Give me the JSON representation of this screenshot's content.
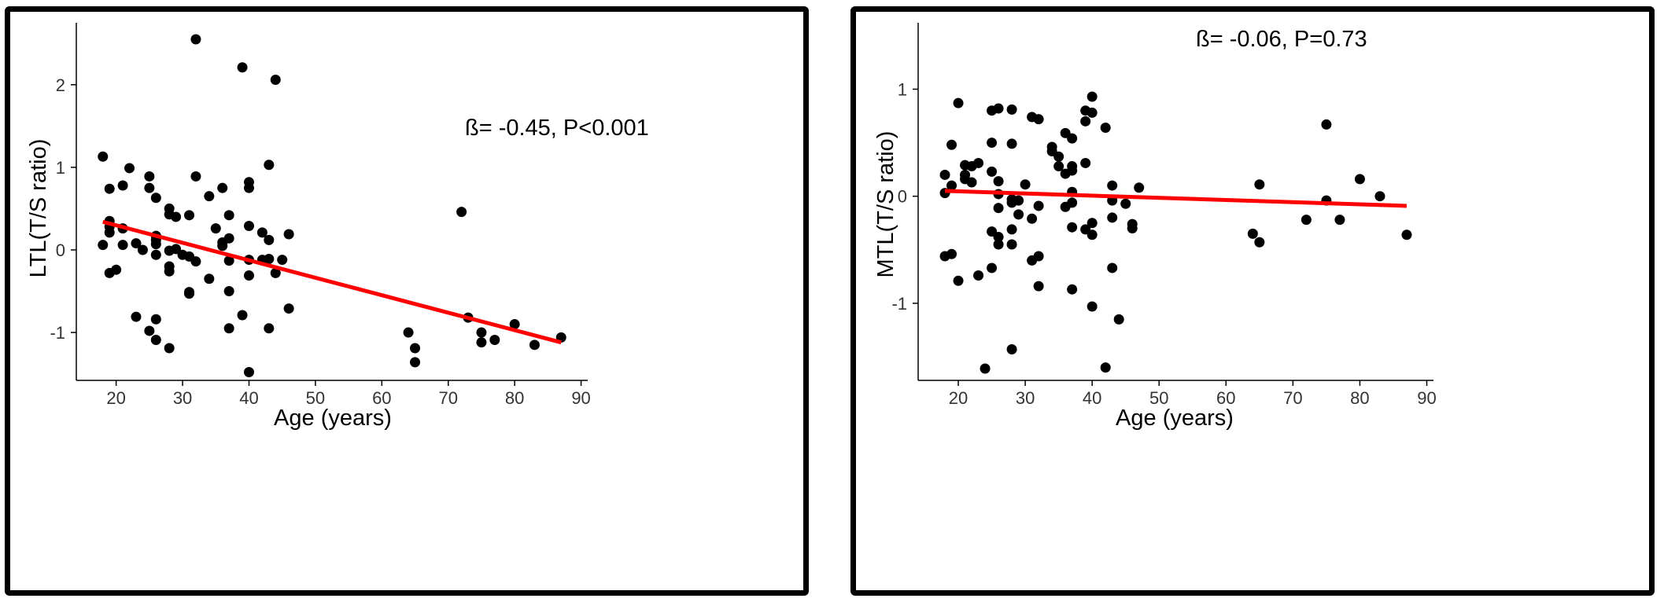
{
  "colors": {
    "points": "#000000",
    "fit_line": "#ff0000",
    "axis": "#000000"
  },
  "chart_data": [
    {
      "type": "scatter",
      "title": "",
      "xlabel": "Age (years)",
      "ylabel": "LTL(T/S ratio)",
      "annotation": "ß= -0.45, P<0.001",
      "xlim": [
        14,
        91
      ],
      "ylim": [
        -1.58,
        2.75
      ],
      "x_ticks": [
        20,
        30,
        40,
        50,
        60,
        70,
        80,
        90
      ],
      "y_ticks": [
        -1,
        0,
        1,
        2
      ],
      "grid": false,
      "legend": "none",
      "fit_line": {
        "x": [
          18,
          87
        ],
        "y": [
          0.34,
          -1.12
        ]
      },
      "points": [
        [
          18,
          1.13
        ],
        [
          18,
          0.06
        ],
        [
          19,
          0.35
        ],
        [
          19,
          0.28
        ],
        [
          19,
          0.21
        ],
        [
          19,
          0.74
        ],
        [
          19,
          -0.28
        ],
        [
          20,
          -0.24
        ],
        [
          21,
          0.78
        ],
        [
          21,
          0.26
        ],
        [
          21,
          0.06
        ],
        [
          22,
          0.99
        ],
        [
          23,
          0.08
        ],
        [
          23,
          -0.81
        ],
        [
          24,
          0.0
        ],
        [
          25,
          0.89
        ],
        [
          25,
          0.75
        ],
        [
          25,
          -0.98
        ],
        [
          26,
          0.63
        ],
        [
          26,
          0.17
        ],
        [
          26,
          0.12
        ],
        [
          26,
          0.07
        ],
        [
          26,
          -0.06
        ],
        [
          26,
          -0.84
        ],
        [
          26,
          -1.09
        ],
        [
          28,
          0.5
        ],
        [
          28,
          0.43
        ],
        [
          28,
          -0.01
        ],
        [
          28,
          -0.2
        ],
        [
          28,
          -0.26
        ],
        [
          28,
          -1.19
        ],
        [
          29,
          0.4
        ],
        [
          29,
          0.01
        ],
        [
          30,
          -0.06
        ],
        [
          31,
          0.42
        ],
        [
          31,
          -0.08
        ],
        [
          31,
          -0.51
        ],
        [
          31,
          -0.53
        ],
        [
          32,
          2.55
        ],
        [
          32,
          0.89
        ],
        [
          32,
          -0.14
        ],
        [
          34,
          0.65
        ],
        [
          34,
          -0.35
        ],
        [
          35,
          0.26
        ],
        [
          36,
          0.75
        ],
        [
          36,
          0.09
        ],
        [
          36,
          0.05
        ],
        [
          37,
          0.42
        ],
        [
          37,
          0.14
        ],
        [
          37,
          -0.13
        ],
        [
          37,
          -0.5
        ],
        [
          37,
          -0.95
        ],
        [
          39,
          2.21
        ],
        [
          39,
          -0.79
        ],
        [
          40,
          0.82
        ],
        [
          40,
          0.75
        ],
        [
          40,
          0.29
        ],
        [
          40,
          -0.12
        ],
        [
          40,
          -0.31
        ],
        [
          40,
          -1.48
        ],
        [
          42,
          0.21
        ],
        [
          42,
          -0.12
        ],
        [
          43,
          1.03
        ],
        [
          43,
          0.12
        ],
        [
          43,
          -0.11
        ],
        [
          43,
          -0.95
        ],
        [
          44,
          2.06
        ],
        [
          44,
          -0.28
        ],
        [
          45,
          -0.12
        ],
        [
          46,
          0.19
        ],
        [
          46,
          -0.71
        ],
        [
          64,
          -1.0
        ],
        [
          65,
          -1.19
        ],
        [
          65,
          -1.36
        ],
        [
          72,
          0.46
        ],
        [
          73,
          -0.82
        ],
        [
          75,
          -1.0
        ],
        [
          75,
          -1.12
        ],
        [
          77,
          -1.09
        ],
        [
          80,
          -0.9
        ],
        [
          83,
          -1.15
        ],
        [
          87,
          -1.06
        ]
      ]
    },
    {
      "type": "scatter",
      "title": "",
      "xlabel": "Age (years)",
      "ylabel": "MTL(T/S ratio)",
      "annotation": "ß= -0.06, P=0.73",
      "xlim": [
        14,
        91
      ],
      "ylim": [
        -1.72,
        1.62
      ],
      "x_ticks": [
        20,
        30,
        40,
        50,
        60,
        70,
        80,
        90
      ],
      "y_ticks": [
        -1,
        0,
        1
      ],
      "grid": false,
      "legend": "none",
      "fit_line": {
        "x": [
          18,
          87
        ],
        "y": [
          0.05,
          -0.09
        ]
      },
      "points": [
        [
          18,
          0.2
        ],
        [
          18,
          0.03
        ],
        [
          18,
          -0.56
        ],
        [
          19,
          0.48
        ],
        [
          19,
          0.1
        ],
        [
          19,
          -0.54
        ],
        [
          20,
          0.87
        ],
        [
          20,
          -0.79
        ],
        [
          21,
          0.29
        ],
        [
          21,
          0.2
        ],
        [
          21,
          0.16
        ],
        [
          22,
          0.28
        ],
        [
          22,
          0.13
        ],
        [
          23,
          0.31
        ],
        [
          23,
          -0.74
        ],
        [
          24,
          -1.61
        ],
        [
          25,
          0.8
        ],
        [
          25,
          0.5
        ],
        [
          25,
          0.23
        ],
        [
          25,
          -0.33
        ],
        [
          25,
          -0.67
        ],
        [
          26,
          0.82
        ],
        [
          26,
          0.14
        ],
        [
          26,
          0.02
        ],
        [
          26,
          -0.11
        ],
        [
          26,
          -0.38
        ],
        [
          26,
          -0.45
        ],
        [
          28,
          0.81
        ],
        [
          28,
          0.49
        ],
        [
          28,
          -0.03
        ],
        [
          28,
          -0.06
        ],
        [
          28,
          -0.31
        ],
        [
          28,
          -0.45
        ],
        [
          28,
          -1.43
        ],
        [
          29,
          -0.04
        ],
        [
          29,
          -0.17
        ],
        [
          30,
          0.11
        ],
        [
          31,
          0.74
        ],
        [
          31,
          -0.21
        ],
        [
          31,
          -0.6
        ],
        [
          32,
          0.72
        ],
        [
          32,
          -0.09
        ],
        [
          32,
          -0.56
        ],
        [
          32,
          -0.84
        ],
        [
          34,
          0.46
        ],
        [
          34,
          0.42
        ],
        [
          35,
          0.37
        ],
        [
          35,
          0.28
        ],
        [
          36,
          0.59
        ],
        [
          36,
          0.21
        ],
        [
          36,
          -0.1
        ],
        [
          37,
          0.54
        ],
        [
          37,
          0.28
        ],
        [
          37,
          0.24
        ],
        [
          37,
          0.04
        ],
        [
          37,
          -0.06
        ],
        [
          37,
          -0.29
        ],
        [
          37,
          -0.87
        ],
        [
          39,
          0.8
        ],
        [
          39,
          0.7
        ],
        [
          39,
          0.31
        ],
        [
          39,
          -0.31
        ],
        [
          40,
          0.93
        ],
        [
          40,
          0.78
        ],
        [
          40,
          -0.25
        ],
        [
          40,
          -0.36
        ],
        [
          40,
          -1.03
        ],
        [
          42,
          0.64
        ],
        [
          42,
          -1.6
        ],
        [
          43,
          0.1
        ],
        [
          43,
          -0.04
        ],
        [
          43,
          -0.2
        ],
        [
          43,
          -0.67
        ],
        [
          44,
          -1.15
        ],
        [
          45,
          -0.07
        ],
        [
          46,
          -0.26
        ],
        [
          46,
          -0.3
        ],
        [
          47,
          0.08
        ],
        [
          64,
          -0.35
        ],
        [
          65,
          0.11
        ],
        [
          65,
          -0.43
        ],
        [
          72,
          -0.22
        ],
        [
          75,
          0.67
        ],
        [
          75,
          -0.04
        ],
        [
          77,
          -0.22
        ],
        [
          80,
          0.16
        ],
        [
          83,
          0.0
        ],
        [
          87,
          -0.36
        ]
      ]
    }
  ]
}
